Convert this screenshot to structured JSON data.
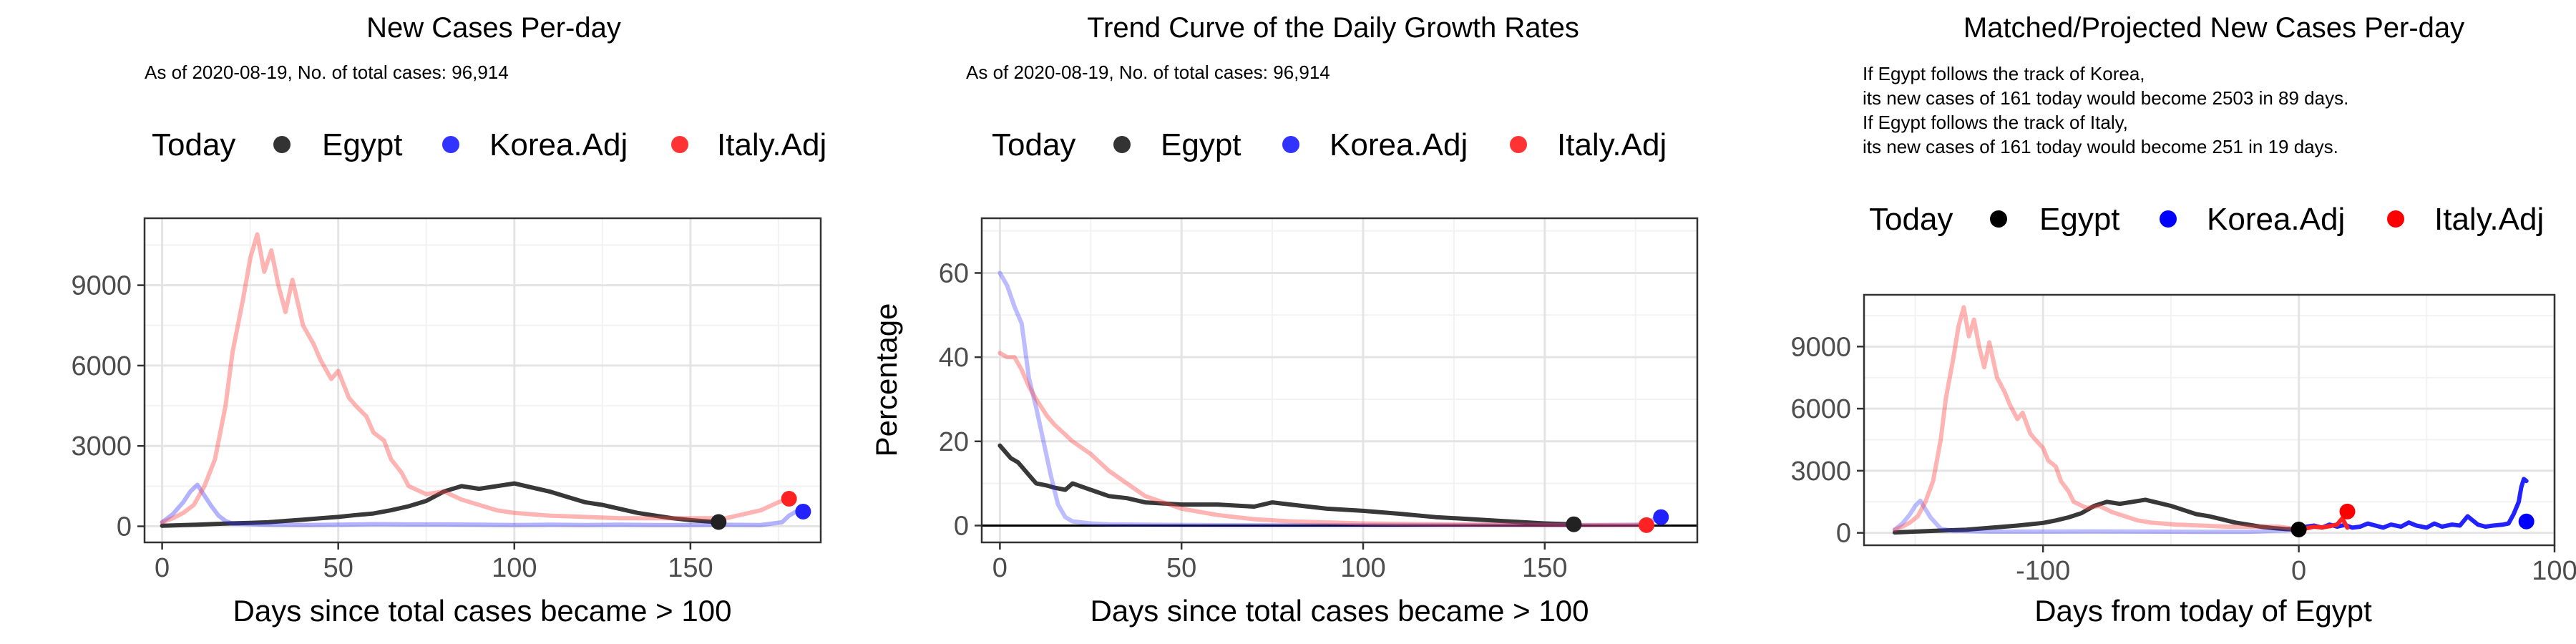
{
  "chart_data": [
    {
      "type": "line",
      "title": "New Cases Per-day",
      "subtitle": "As of 2020-08-19, No. of total cases: 96,914",
      "xlabel": "Days since total cases became > 100",
      "ylabel": "",
      "xlim": [
        -5,
        187
      ],
      "ylim": [
        -600,
        11500
      ],
      "xticks": [
        0,
        50,
        100,
        150
      ],
      "yticks": [
        0,
        3000,
        6000,
        9000
      ],
      "grid": true,
      "legend_position": "top",
      "legend": {
        "title": "Today",
        "items": [
          "Egypt",
          "Korea.Adj",
          "Italy.Adj"
        ]
      },
      "series": [
        {
          "name": "Egypt",
          "color": "#222222",
          "opacity": 0.9,
          "x": [
            0,
            5,
            10,
            15,
            20,
            25,
            30,
            35,
            40,
            45,
            50,
            55,
            60,
            65,
            70,
            75,
            80,
            85,
            90,
            95,
            100,
            105,
            110,
            115,
            120,
            125,
            130,
            135,
            140,
            145,
            150,
            155,
            158
          ],
          "y": [
            20,
            40,
            60,
            90,
            110,
            130,
            150,
            200,
            250,
            300,
            350,
            420,
            480,
            600,
            750,
            950,
            1300,
            1500,
            1400,
            1500,
            1600,
            1450,
            1300,
            1100,
            900,
            800,
            650,
            500,
            400,
            300,
            230,
            180,
            161
          ]
        },
        {
          "name": "Korea.Adj",
          "color": "#2222ff",
          "opacity": 0.35,
          "x": [
            0,
            3,
            6,
            8,
            10,
            12,
            14,
            16,
            18,
            20,
            25,
            30,
            40,
            50,
            60,
            70,
            80,
            90,
            100,
            110,
            120,
            130,
            140,
            150,
            160,
            170,
            176,
            178,
            180,
            182
          ],
          "y": [
            150,
            450,
            900,
            1300,
            1550,
            1150,
            750,
            400,
            200,
            100,
            80,
            60,
            50,
            60,
            80,
            70,
            70,
            60,
            50,
            60,
            50,
            60,
            50,
            50,
            60,
            50,
            150,
            400,
            550,
            550
          ]
        },
        {
          "name": "Italy.Adj",
          "color": "#ff4444",
          "opacity": 0.4,
          "x": [
            0,
            3,
            6,
            9,
            12,
            15,
            18,
            20,
            23,
            25,
            27,
            29,
            31,
            33,
            35,
            37,
            40,
            43,
            45,
            48,
            50,
            53,
            55,
            58,
            60,
            63,
            65,
            68,
            70,
            75,
            80,
            85,
            90,
            95,
            100,
            110,
            120,
            130,
            140,
            150,
            160,
            170,
            175,
            178
          ],
          "y": [
            150,
            300,
            500,
            800,
            1500,
            2500,
            4500,
            6500,
            8500,
            10000,
            10900,
            9500,
            10300,
            9000,
            8000,
            9200,
            7500,
            6800,
            6200,
            5500,
            5800,
            4800,
            4500,
            4100,
            3500,
            3200,
            2500,
            2000,
            1500,
            1200,
            1300,
            1000,
            800,
            600,
            500,
            400,
            350,
            300,
            300,
            300,
            300,
            600,
            900,
            1030
          ]
        }
      ],
      "today_points": [
        {
          "name": "Egypt",
          "x": 158,
          "y": 161,
          "color": "#222222"
        },
        {
          "name": "Korea.Adj",
          "x": 182,
          "y": 550,
          "color": "#2222ff"
        },
        {
          "name": "Italy.Adj",
          "x": 178,
          "y": 1030,
          "color": "#ff2222"
        }
      ]
    },
    {
      "type": "line",
      "title": "Trend Curve of the Daily Growth Rates",
      "subtitle": "As of 2020-08-19, No. of total cases: 96,914",
      "xlabel": "Days since total cases became > 100",
      "ylabel": "Percentage",
      "xlim": [
        -5,
        192
      ],
      "ylim": [
        -4,
        73
      ],
      "xticks": [
        0,
        50,
        100,
        150
      ],
      "yticks": [
        0,
        20,
        40,
        60
      ],
      "grid": true,
      "zero_line": true,
      "legend_position": "top",
      "legend": {
        "title": "Today",
        "items": [
          "Egypt",
          "Korea.Adj",
          "Italy.Adj"
        ]
      },
      "series": [
        {
          "name": "Egypt",
          "color": "#222222",
          "opacity": 0.9,
          "x": [
            0,
            3,
            5,
            8,
            10,
            13,
            15,
            18,
            20,
            25,
            30,
            35,
            40,
            50,
            60,
            70,
            75,
            80,
            90,
            100,
            110,
            120,
            130,
            140,
            150,
            158
          ],
          "y": [
            19,
            16,
            15,
            12,
            10,
            9.5,
            9,
            8.5,
            10,
            8.5,
            7,
            6.5,
            5.5,
            5,
            5,
            4.5,
            5.5,
            5,
            4,
            3.5,
            2.8,
            2,
            1.5,
            1,
            0.5,
            0.3
          ]
        },
        {
          "name": "Korea.Adj",
          "color": "#2222ff",
          "opacity": 0.3,
          "x": [
            0,
            2,
            4,
            6,
            8,
            10,
            12,
            14,
            16,
            18,
            20,
            25,
            30,
            40,
            60,
            80,
            100,
            120,
            140,
            160,
            175,
            178,
            180,
            182
          ],
          "y": [
            60,
            57,
            52,
            48,
            35,
            28,
            20,
            12,
            5,
            2,
            1,
            0.5,
            0.3,
            0.2,
            0.1,
            0.1,
            0.1,
            0.1,
            0.1,
            0.1,
            0.2,
            0.5,
            1.5,
            2
          ]
        },
        {
          "name": "Italy.Adj",
          "color": "#ff4444",
          "opacity": 0.4,
          "x": [
            0,
            2,
            4,
            6,
            8,
            10,
            13,
            15,
            20,
            25,
            30,
            35,
            40,
            50,
            60,
            70,
            80,
            100,
            120,
            140,
            160,
            170,
            176,
            178
          ],
          "y": [
            41,
            40,
            40,
            37,
            33,
            30,
            26,
            24,
            20,
            17,
            13,
            10,
            7,
            4,
            2.5,
            1.5,
            1,
            0.5,
            0.3,
            0.2,
            0.1,
            0.1,
            0.1,
            0.1
          ]
        }
      ],
      "today_points": [
        {
          "name": "Egypt",
          "x": 158,
          "y": 0.3,
          "color": "#222222"
        },
        {
          "name": "Korea.Adj",
          "x": 182,
          "y": 2,
          "color": "#2222ff"
        },
        {
          "name": "Italy.Adj",
          "x": 178,
          "y": 0.1,
          "color": "#ff2222"
        }
      ]
    },
    {
      "type": "line",
      "title": "Matched/Projected New Cases Per-day",
      "annotation_lines": [
        "If Egypt follows the track of Korea,",
        "its new cases of 161 today would become 2503 in 89 days.",
        "If Egypt follows the track of Italy,",
        "its new cases of 161 today would become 251 in 19 days."
      ],
      "xlabel": "Days from today of Egypt",
      "ylabel": "",
      "xlim": [
        -170,
        100
      ],
      "ylim": [
        -600,
        11500
      ],
      "xticks": [
        -100,
        0,
        100
      ],
      "xtick_labels": [
        "-100",
        "0",
        "100"
      ],
      "yticks": [
        0,
        3000,
        6000,
        9000
      ],
      "grid": true,
      "legend_position": "top",
      "legend": {
        "title": "Today",
        "items": [
          "Egypt",
          "Korea.Adj",
          "Italy.Adj"
        ]
      },
      "series": [
        {
          "name": "Egypt",
          "color": "#222222",
          "opacity": 0.9,
          "x": [
            -158,
            -150,
            -140,
            -130,
            -120,
            -110,
            -100,
            -95,
            -90,
            -85,
            -80,
            -75,
            -70,
            -65,
            -60,
            -55,
            -50,
            -45,
            -40,
            -35,
            -30,
            -25,
            -20,
            -15,
            -10,
            -5,
            0
          ],
          "y": [
            20,
            60,
            110,
            150,
            250,
            350,
            480,
            600,
            750,
            950,
            1300,
            1500,
            1400,
            1500,
            1600,
            1450,
            1300,
            1100,
            900,
            800,
            650,
            500,
            400,
            300,
            230,
            180,
            161
          ]
        },
        {
          "name": "Korea.Adj",
          "color": "#2222ff",
          "opacity": 0.3,
          "x": [
            -158,
            -155,
            -152,
            -150,
            -148,
            -146,
            -144,
            -140,
            -135,
            -120,
            -100,
            -80,
            -60,
            -40,
            -20,
            -5,
            0
          ],
          "y": [
            150,
            450,
            900,
            1300,
            1550,
            1150,
            750,
            200,
            100,
            60,
            60,
            70,
            60,
            50,
            50,
            120,
            161
          ]
        },
        {
          "name": "Korea.Adj (projected)",
          "color": "#2222ff",
          "opacity": 1,
          "x": [
            0,
            3,
            6,
            9,
            12,
            15,
            18,
            21,
            24,
            27,
            30,
            33,
            36,
            40,
            43,
            46,
            50,
            53,
            56,
            60,
            63,
            66,
            70,
            73,
            76,
            80,
            82,
            84,
            86,
            87,
            88,
            89
          ],
          "y": [
            161,
            300,
            350,
            250,
            400,
            300,
            380,
            250,
            300,
            450,
            350,
            250,
            400,
            300,
            500,
            350,
            250,
            450,
            300,
            400,
            350,
            800,
            400,
            300,
            350,
            400,
            450,
            900,
            1500,
            2200,
            2600,
            2503
          ]
        },
        {
          "name": "Italy.Adj",
          "color": "#ff4444",
          "opacity": 0.4,
          "x": [
            -158,
            -155,
            -152,
            -149,
            -146,
            -143,
            -140,
            -138,
            -135,
            -133,
            -131,
            -129,
            -127,
            -125,
            -123,
            -121,
            -118,
            -115,
            -113,
            -110,
            -108,
            -105,
            -103,
            -100,
            -98,
            -95,
            -93,
            -90,
            -88,
            -83,
            -78,
            -73,
            -68,
            -63,
            -58,
            -48,
            -38,
            -28,
            -18,
            -8,
            0
          ],
          "y": [
            150,
            300,
            500,
            800,
            1500,
            2500,
            4500,
            6500,
            8500,
            10000,
            10900,
            9500,
            10300,
            9000,
            8000,
            9200,
            7500,
            6800,
            6200,
            5500,
            5800,
            4800,
            4500,
            4100,
            3500,
            3200,
            2500,
            2000,
            1500,
            1200,
            1300,
            1000,
            800,
            600,
            500,
            400,
            350,
            300,
            300,
            300,
            161
          ]
        },
        {
          "name": "Italy.Adj (projected)",
          "color": "#ff2222",
          "opacity": 1,
          "x": [
            0,
            3,
            6,
            9,
            12,
            15,
            17,
            19
          ],
          "y": [
            161,
            220,
            300,
            260,
            320,
            400,
            700,
            251
          ]
        }
      ],
      "today_points": [
        {
          "name": "Egypt",
          "x": 0,
          "y": 161,
          "color": "#000000"
        },
        {
          "name": "Korea.Adj",
          "x": 89,
          "y": 550,
          "color": "#0000ff"
        },
        {
          "name": "Italy.Adj",
          "x": 19,
          "y": 1030,
          "color": "#ff0000"
        }
      ]
    }
  ]
}
